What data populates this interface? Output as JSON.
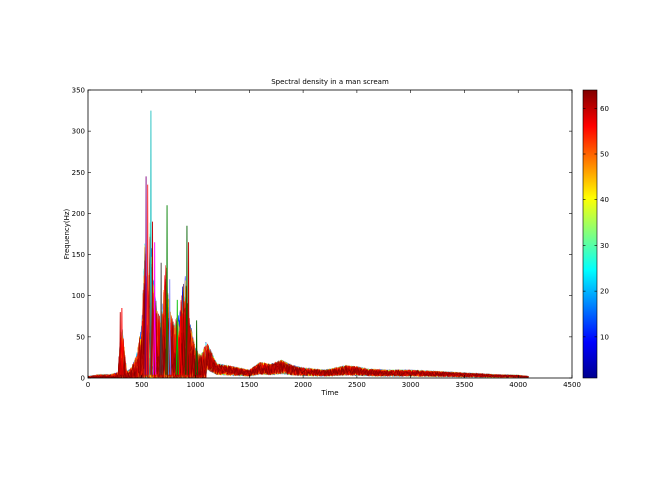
{
  "chart_data": {
    "type": "line",
    "title": "Spectral density in a man scream",
    "xlabel": "Time",
    "ylabel": "Frequency(Hz)",
    "xlim": [
      0,
      4500
    ],
    "ylim": [
      0,
      350
    ],
    "xticks": [
      0,
      500,
      1000,
      1500,
      2000,
      2500,
      3000,
      3500,
      4000,
      4500
    ],
    "yticks": [
      0,
      50,
      100,
      150,
      200,
      250,
      300,
      350
    ],
    "grid": false,
    "legend": "none",
    "n_series": 64,
    "series_color_range": [
      1,
      64
    ],
    "colorbar": {
      "colormap": "jet",
      "range": [
        1,
        64
      ],
      "ticks": [
        10,
        20,
        30,
        40,
        50,
        60
      ]
    },
    "approx_envelope": {
      "x": [
        0,
        100,
        200,
        280,
        300,
        320,
        360,
        400,
        450,
        500,
        530,
        560,
        580,
        600,
        640,
        680,
        700,
        720,
        760,
        800,
        850,
        900,
        950,
        1000,
        1050,
        1100,
        1200,
        1300,
        1400,
        1500,
        1600,
        1700,
        1800,
        1900,
        2000,
        2200,
        2400,
        2500,
        2600,
        2800,
        3000,
        3200,
        3400,
        3600,
        3800,
        4000,
        4100
      ],
      "y": [
        3,
        6,
        6,
        10,
        80,
        85,
        12,
        18,
        40,
        95,
        245,
        110,
        325,
        190,
        120,
        100,
        140,
        210,
        120,
        95,
        120,
        185,
        95,
        55,
        40,
        65,
        25,
        22,
        18,
        14,
        28,
        24,
        32,
        22,
        18,
        14,
        22,
        20,
        16,
        14,
        14,
        12,
        10,
        8,
        6,
        5,
        3
      ]
    },
    "peaks": [
      {
        "x": 300,
        "y": 80,
        "color": "#c00000"
      },
      {
        "x": 315,
        "y": 85,
        "color": "#ff0000"
      },
      {
        "x": 540,
        "y": 245,
        "color": "#800080"
      },
      {
        "x": 555,
        "y": 235,
        "color": "#ff2020"
      },
      {
        "x": 585,
        "y": 325,
        "color": "#20c0c0"
      },
      {
        "x": 600,
        "y": 190,
        "color": "#c00000"
      },
      {
        "x": 620,
        "y": 165,
        "color": "#ff00ff"
      },
      {
        "x": 680,
        "y": 140,
        "color": "#404040"
      },
      {
        "x": 735,
        "y": 210,
        "color": "#008000"
      },
      {
        "x": 760,
        "y": 120,
        "color": "#8080ff"
      },
      {
        "x": 830,
        "y": 95,
        "color": "#00c000"
      },
      {
        "x": 860,
        "y": 75,
        "color": "#ff0000"
      },
      {
        "x": 920,
        "y": 185,
        "color": "#006000"
      },
      {
        "x": 935,
        "y": 165,
        "color": "#c00000"
      },
      {
        "x": 1010,
        "y": 70,
        "color": "#006000"
      }
    ]
  }
}
